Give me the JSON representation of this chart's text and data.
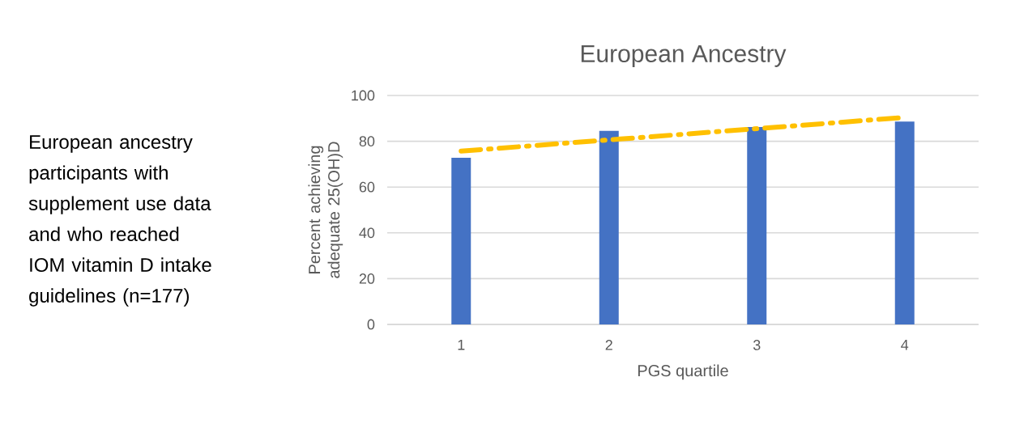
{
  "chart_data": {
    "type": "bar",
    "title": "European Ancestry",
    "xlabel": "PGS quartile",
    "ylabel": "Percent achieving adequate 25(OH)D",
    "categories": [
      "1",
      "2",
      "3",
      "4"
    ],
    "series": [
      {
        "color": "#4472c4",
        "values": [
          72.8,
          84.5,
          86.2,
          88.6
        ]
      },
      {
        "type": "line",
        "color": "#ffc000",
        "line_style": "dashed",
        "x": [
          "1",
          "2",
          "3",
          "4"
        ],
        "values": [
          75.7,
          80.6,
          85.5,
          90.4
        ]
      }
    ],
    "ylim": [
      0,
      100
    ],
    "yticks": [
      0,
      20,
      40,
      60,
      80,
      100
    ],
    "grid": "y",
    "annotations": [
      "European ancestry participants with supplement use data and who reached IOM vitamin D intake guidelines (n=177)"
    ]
  }
}
